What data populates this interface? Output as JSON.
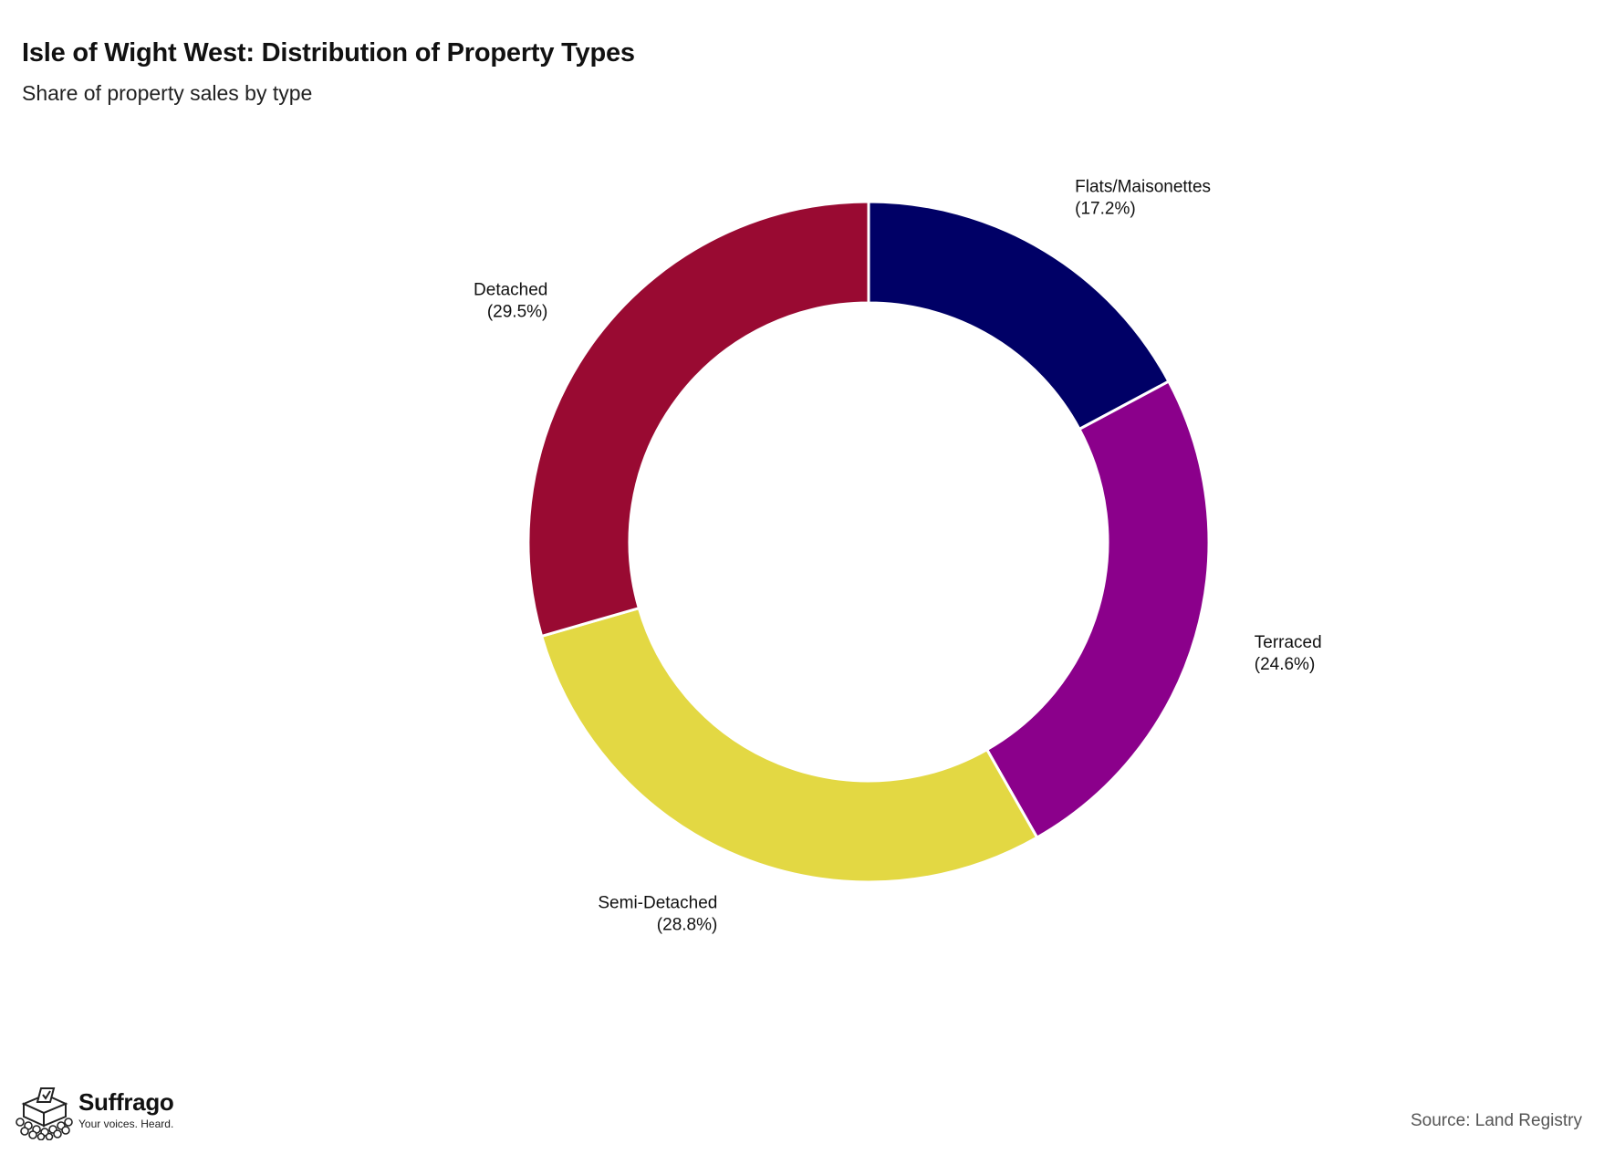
{
  "chart_data": {
    "type": "pie",
    "title": "Isle of Wight West: Distribution of Property Types",
    "subtitle": "Share of property sales by type",
    "donut": true,
    "slices": [
      {
        "label": "Flats/Maisonettes",
        "value": 17.2,
        "display": "(17.2%)",
        "color": "#000066"
      },
      {
        "label": "Terraced",
        "value": 24.6,
        "display": "(24.6%)",
        "color": "#8B008B"
      },
      {
        "label": "Semi-Detached",
        "value": 28.8,
        "display": "(28.8%)",
        "color": "#E3D843"
      },
      {
        "label": "Detached",
        "value": 29.5,
        "display": "(29.5%)",
        "color": "#990A32"
      }
    ],
    "legend": "none",
    "source": "Source: Land Registry"
  },
  "branding": {
    "name": "Suffrago",
    "tagline": "Your voices. Heard.",
    "logo_icon": "ballot-box-icon"
  }
}
